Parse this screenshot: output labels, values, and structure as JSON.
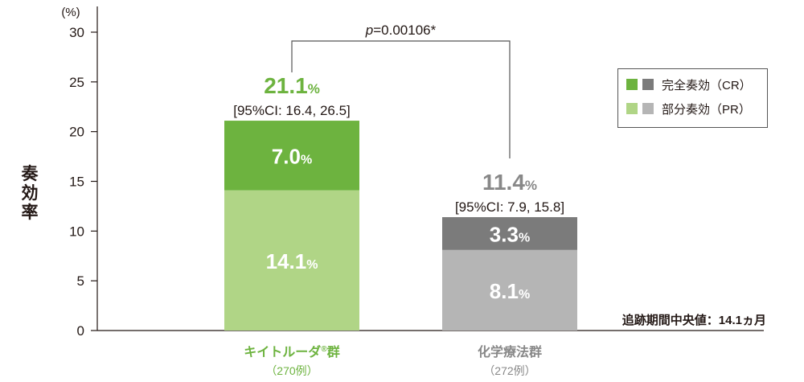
{
  "chart_data": {
    "type": "bar",
    "stacked": true,
    "ylabel": "奏効率",
    "yunit": "(%)",
    "ylim": [
      0,
      30
    ],
    "yticks": [
      0,
      5,
      10,
      15,
      20,
      25,
      30
    ],
    "categories": [
      {
        "label": "キイトルーダ",
        "mark": "®",
        "label_suffix": "群",
        "sublabel": "（270例）",
        "color": "#6db33f"
      },
      {
        "label": "化学療法群",
        "mark": "",
        "label_suffix": "",
        "sublabel": "（272例）",
        "color": "#888888"
      }
    ],
    "series": [
      {
        "name": "部分奏効（PR）",
        "values": [
          14.1,
          8.1
        ],
        "colors": [
          "#b0d586",
          "#b5b5b5"
        ],
        "labels": [
          "14.1",
          "8.1"
        ]
      },
      {
        "name": "完全奏効（CR）",
        "values": [
          7.0,
          3.3
        ],
        "colors": [
          "#6db33f",
          "#7b7b7b"
        ],
        "labels": [
          "7.0",
          "3.3"
        ]
      }
    ],
    "totals": [
      {
        "value": "21.1",
        "ci": "[95%CI: 16.4, 26.5]",
        "color": "#6db33f"
      },
      {
        "value": "11.4",
        "ci": "[95%CI: 7.9, 15.8]",
        "color": "#888888"
      }
    ],
    "percent_sign": "%",
    "pvalue": {
      "italic": "p",
      "text": "=0.00106*"
    },
    "legend": [
      {
        "label": "完全奏効（CR）",
        "colors": [
          "#6db33f",
          "#7b7b7b"
        ]
      },
      {
        "label": "部分奏効（PR）",
        "colors": [
          "#b0d586",
          "#b5b5b5"
        ]
      }
    ],
    "legend_position": "top-right",
    "note": "追跡期間中央値：14.1ヵ月"
  }
}
